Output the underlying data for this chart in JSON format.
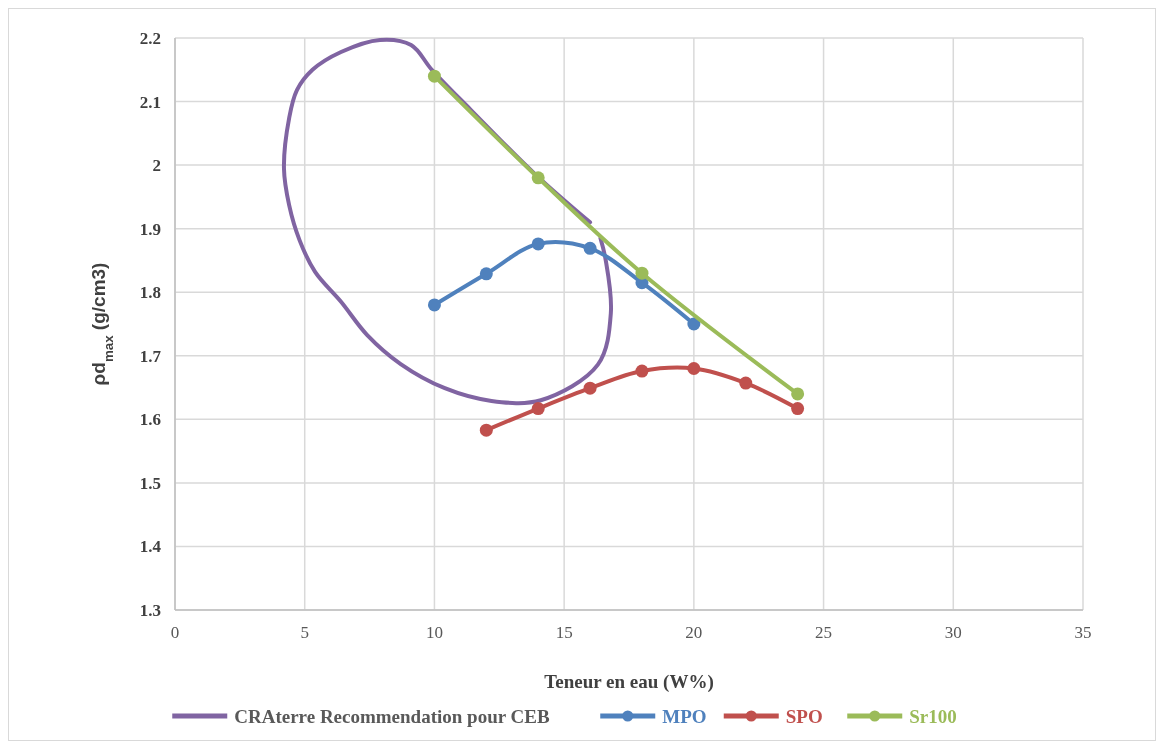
{
  "chart_data": {
    "type": "line",
    "xlabel": "Teneur en eau (W%)",
    "ylabel": "ρd$_{max}$ (g/cm3)",
    "xlim": [
      0,
      35
    ],
    "xticks": [
      0,
      5,
      10,
      15,
      20,
      25,
      30,
      35
    ],
    "ylim": [
      1.3,
      2.2
    ],
    "yticks": [
      1.3,
      1.4,
      1.5,
      1.6,
      1.7,
      1.8,
      1.9,
      2,
      2.1,
      2.2
    ],
    "grid": true,
    "legend": "bottom",
    "marker": "circle",
    "series": [
      {
        "name": "CRAterre Recommendation pour CEB",
        "color": "#8064a2",
        "marker": "none",
        "x": [
          16.0,
          13.9,
          11.4,
          9.9,
          9.1,
          7.9,
          6.4,
          5.3,
          4.7,
          4.4,
          4.2,
          4.4,
          4.8,
          5.4,
          6.4,
          7.4,
          8.7,
          10.4,
          12.2,
          14.1,
          16.3,
          16.8,
          16.6,
          16.4
        ],
        "values": [
          1.91,
          1.985,
          2.087,
          2.15,
          2.189,
          2.197,
          2.178,
          2.15,
          2.118,
          2.074,
          1.995,
          1.937,
          1.882,
          1.832,
          1.785,
          1.733,
          1.687,
          1.649,
          1.629,
          1.63,
          1.686,
          1.767,
          1.851,
          1.885
        ]
      },
      {
        "name": "MPO",
        "color": "#4f81bd",
        "x": [
          10,
          12,
          14,
          16,
          18,
          20
        ],
        "values": [
          1.78,
          1.829,
          1.876,
          1.869,
          1.815,
          1.75
        ]
      },
      {
        "name": "SPO",
        "color": "#c0504d",
        "x": [
          12,
          14,
          16,
          18,
          20,
          22,
          24
        ],
        "values": [
          1.583,
          1.617,
          1.649,
          1.676,
          1.68,
          1.657,
          1.617
        ]
      },
      {
        "name": "Sr100",
        "color": "#9bbb59",
        "x": [
          10,
          14,
          18,
          24
        ],
        "values": [
          2.14,
          1.98,
          1.83,
          1.64
        ]
      }
    ]
  }
}
